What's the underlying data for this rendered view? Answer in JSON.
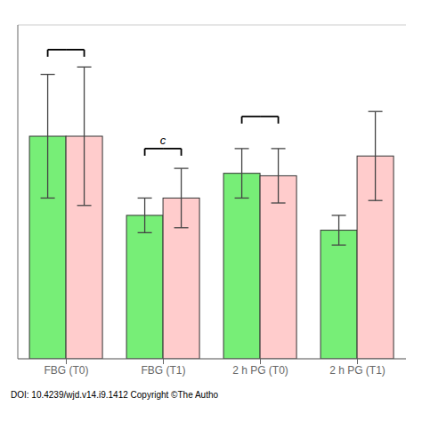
{
  "chart_data": {
    "type": "bar",
    "categories": [
      "FBG (T0)",
      "FBG (T1)",
      "2 h PG (T0)",
      "2 h PG (T1)"
    ],
    "series": [
      {
        "color": "#77ee77",
        "values": [
          9.0,
          5.8,
          7.5,
          5.2
        ],
        "errors": [
          2.5,
          0.7,
          1.0,
          0.6
        ]
      },
      {
        "color": "#ffcccc",
        "values": [
          9.0,
          6.5,
          7.4,
          8.2
        ],
        "errors": [
          2.8,
          1.2,
          1.1,
          1.8
        ]
      }
    ],
    "ylim": [
      0,
      13.5
    ],
    "yticks": [
      0,
      2,
      4,
      6,
      8,
      10,
      12
    ],
    "grid": true,
    "tick_labels": "x",
    "brackets": [
      {
        "category": "FBG (T0)",
        "y": 12.5
      },
      {
        "category": "FBG (T1)",
        "y": 8.5,
        "label": "c"
      },
      {
        "category": "2 h PG (T0)",
        "y": 9.8
      }
    ],
    "annotations": [
      {
        "text": "DOI: 10.4239/wjd.v14.i9.1412  Copyright ©The Autho"
      }
    ]
  }
}
